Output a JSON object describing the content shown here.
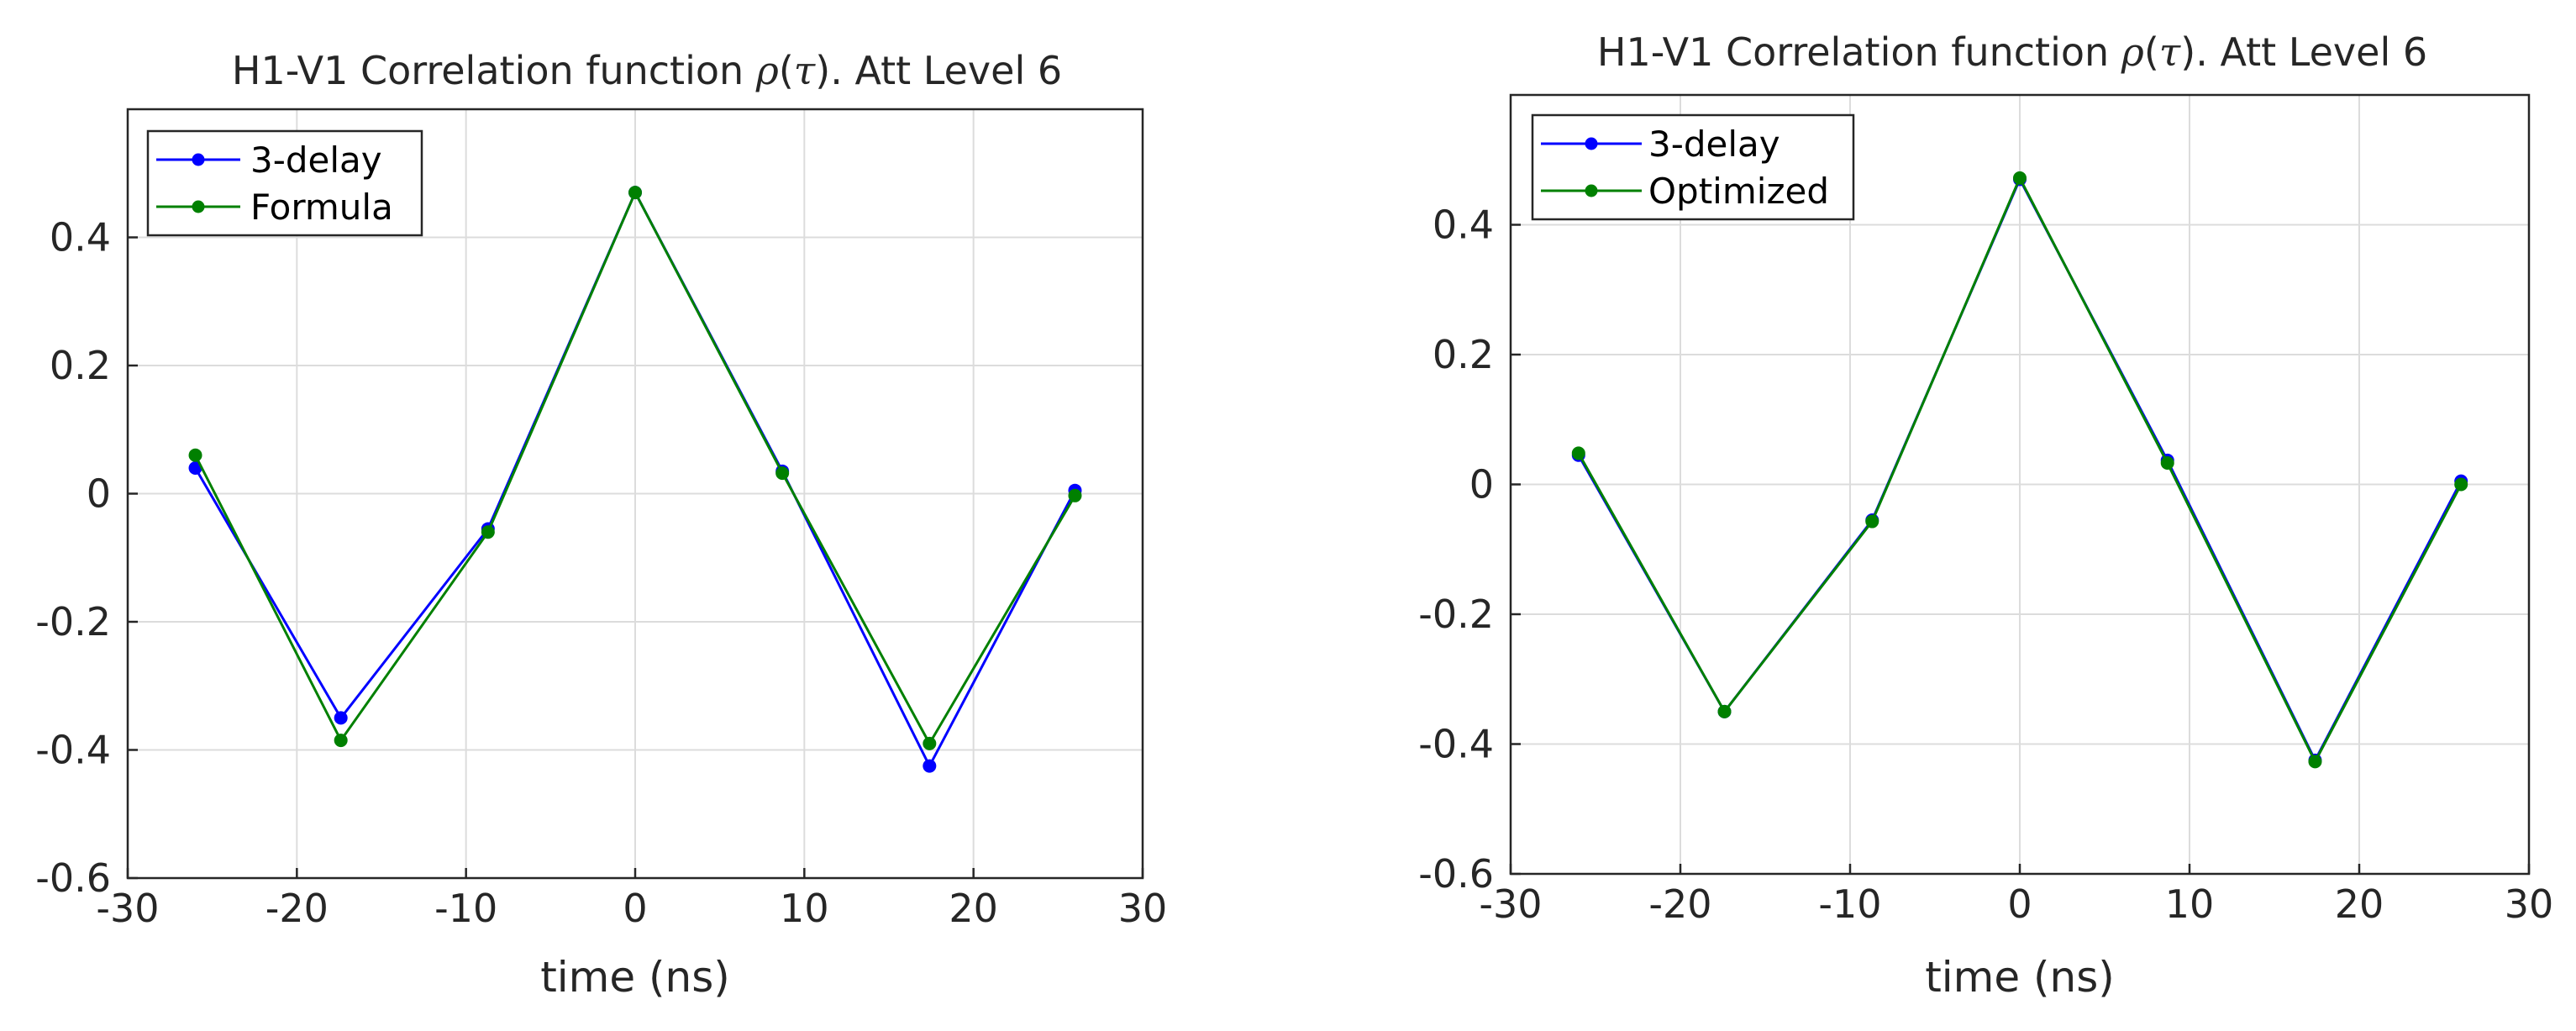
{
  "chart_data": [
    {
      "type": "line",
      "title_prefix": "H1-V1 Correlation function ",
      "title_rho": "ρ",
      "title_open": "(",
      "title_tau": "τ",
      "title_suffix": "). Att Level 6",
      "xlabel": "time (ns)",
      "ylabel": "",
      "xlim": [
        -30,
        30
      ],
      "ylim": [
        -0.6,
        0.6
      ],
      "xticks": [
        -30,
        -20,
        -10,
        0,
        10,
        20,
        30
      ],
      "xtick_labels": [
        "-30",
        "-20",
        "-10",
        "0",
        "10",
        "20",
        "30"
      ],
      "yticks": [
        -0.6,
        -0.4,
        -0.2,
        0,
        0.2,
        0.4
      ],
      "ytick_labels": [
        "-0.6",
        "-0.4",
        "-0.2",
        "0",
        "0.2",
        "0.4"
      ],
      "grid": true,
      "legend_location": "top-left",
      "x": [
        -26,
        -17.4,
        -8.7,
        0,
        8.7,
        17.4,
        26
      ],
      "series": [
        {
          "name": "3-delay",
          "color": "#0000ff",
          "values": [
            0.04,
            -0.35,
            -0.055,
            0.47,
            0.035,
            -0.425,
            0.005
          ]
        },
        {
          "name": "Formula",
          "color": "#008000",
          "values": [
            0.06,
            -0.385,
            -0.06,
            0.47,
            0.032,
            -0.39,
            -0.003
          ]
        }
      ]
    },
    {
      "type": "line",
      "title_prefix": "H1-V1 Correlation function ",
      "title_rho": "ρ",
      "title_open": "(",
      "title_tau": "τ",
      "title_suffix": "). Att Level 6",
      "xlabel": "time (ns)",
      "ylabel": "",
      "xlim": [
        -30,
        30
      ],
      "ylim": [
        -0.6,
        0.6
      ],
      "xticks": [
        -30,
        -20,
        -10,
        0,
        10,
        20,
        30
      ],
      "xtick_labels": [
        "-30",
        "-20",
        "-10",
        "0",
        "10",
        "20",
        "30"
      ],
      "yticks": [
        -0.6,
        -0.4,
        -0.2,
        0,
        0.2,
        0.4
      ],
      "ytick_labels": [
        "-0.6",
        "-0.4",
        "-0.2",
        "0",
        "0.2",
        "0.4"
      ],
      "grid": true,
      "legend_location": "top-left",
      "x": [
        -26,
        -17.4,
        -8.7,
        0,
        8.7,
        17.4,
        26
      ],
      "series": [
        {
          "name": "3-delay",
          "color": "#0000ff",
          "values": [
            0.045,
            -0.35,
            -0.055,
            0.47,
            0.037,
            -0.425,
            0.005
          ]
        },
        {
          "name": "Optimized",
          "color": "#008000",
          "values": [
            0.048,
            -0.35,
            -0.057,
            0.472,
            0.033,
            -0.427,
            0.0
          ]
        }
      ]
    }
  ]
}
